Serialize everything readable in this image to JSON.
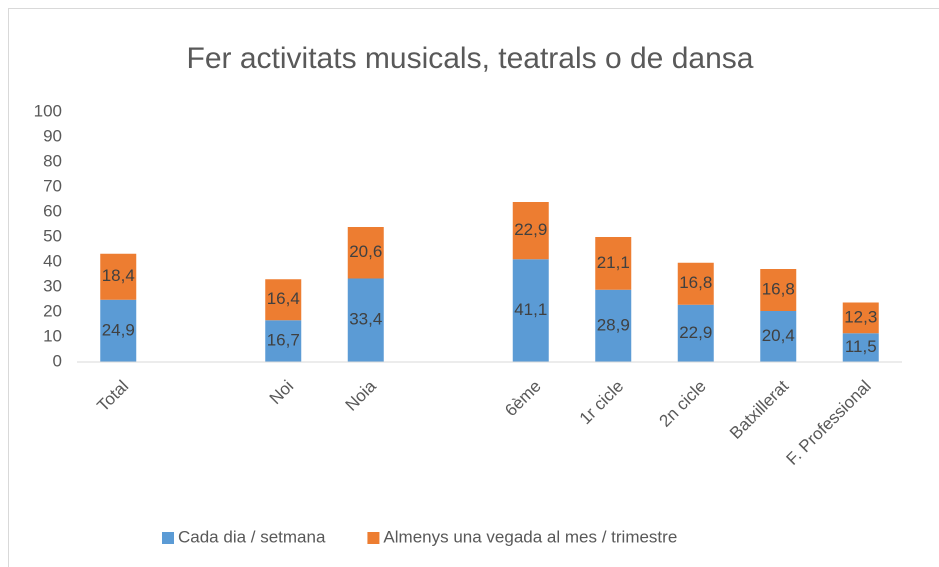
{
  "chart_data": {
    "type": "stacked_bar",
    "title": "Fer activitats musicals, teatrals o de dansa",
    "categories": [
      "Total",
      null,
      "Noi",
      "Noia",
      null,
      "6ème",
      "1r cicle",
      "2n cicle",
      "Batxillerat",
      "F. Professional"
    ],
    "series": [
      {
        "name": "Cada dia / setmana",
        "color": "#5b9bd5",
        "values": [
          24.9,
          null,
          16.7,
          33.4,
          null,
          41.1,
          28.9,
          22.9,
          20.4,
          11.5
        ],
        "value_labels": [
          "24,9",
          null,
          "16,7",
          "33,4",
          null,
          "41,1",
          "28,9",
          "22,9",
          "20,4",
          "11,5"
        ]
      },
      {
        "name": "Almenys una vegada al mes / trimestre",
        "color": "#ed7d31",
        "values": [
          18.4,
          null,
          16.4,
          20.6,
          null,
          22.9,
          21.1,
          16.8,
          16.8,
          12.3
        ],
        "value_labels": [
          "18,4",
          null,
          "16,4",
          "20,6",
          null,
          "22,9",
          "21,1",
          "16,8",
          "16,8",
          "12,3"
        ]
      }
    ],
    "ylim": [
      0,
      100
    ],
    "yticks": [
      0,
      10,
      20,
      30,
      40,
      50,
      60,
      70,
      80,
      90,
      100
    ],
    "grid": false,
    "legend": "bottom"
  }
}
